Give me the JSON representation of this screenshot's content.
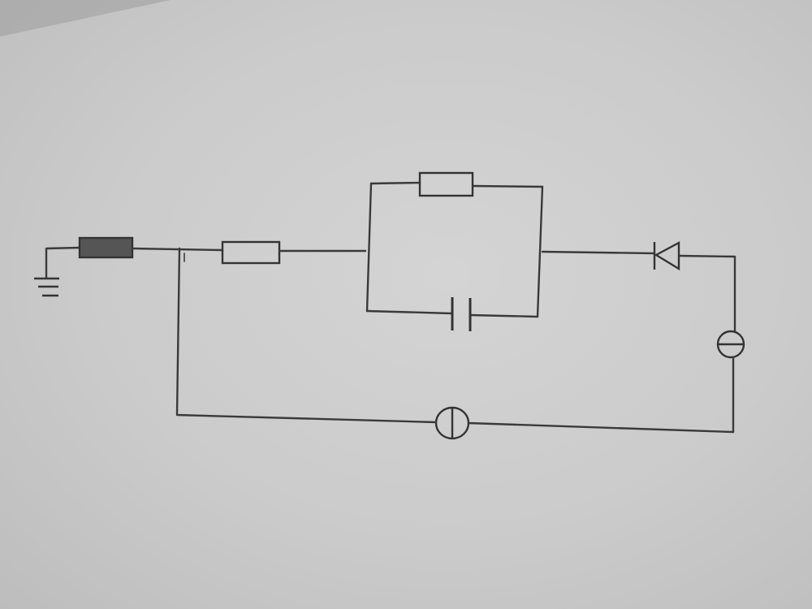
{
  "diagram": {
    "components": [
      {
        "id": "ground",
        "icon": "ground-icon"
      },
      {
        "id": "fuse",
        "icon": "fuse-icon"
      },
      {
        "id": "resistor-1",
        "icon": "resistor-icon"
      },
      {
        "id": "resistor-2",
        "icon": "resistor-icon"
      },
      {
        "id": "capacitor",
        "icon": "capacitor-icon"
      },
      {
        "id": "diode",
        "icon": "diode-icon"
      },
      {
        "id": "source-right",
        "icon": "source-icon"
      },
      {
        "id": "source-bottom",
        "icon": "source-icon"
      }
    ],
    "colors": {
      "paper": "#cbcbcb",
      "ink": "#3a3a3a",
      "fuse_fill": "#555555"
    }
  }
}
